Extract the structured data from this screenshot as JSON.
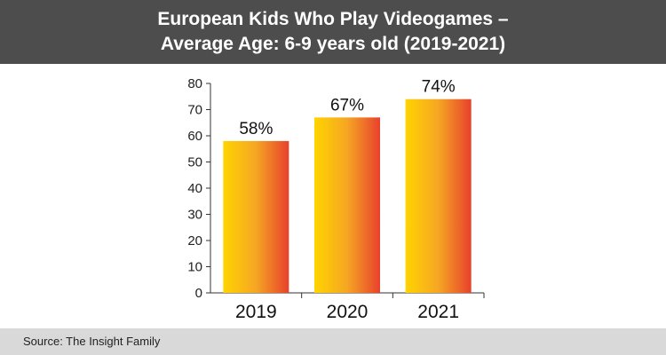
{
  "header": {
    "title_line1": "European Kids Who Play Videogames –",
    "title_line2": "Average Age: 6-9 years old (2019-2021)"
  },
  "footer": {
    "source": "Source: The Insight Family"
  },
  "colors": {
    "header_bg": "#4d4d4d",
    "footer_bg": "#d9d9d9",
    "bar_gradient_start": "#ffd400",
    "bar_gradient_mid": "#f5a623",
    "bar_gradient_end": "#e8412c"
  },
  "chart_data": {
    "type": "bar",
    "title": "European Kids Who Play Videogames – Average Age: 6-9 years old (2019-2021)",
    "categories": [
      "2019",
      "2020",
      "2021"
    ],
    "values": [
      58,
      67,
      74
    ],
    "value_labels": [
      "58%",
      "67%",
      "74%"
    ],
    "ylim": [
      0,
      80
    ],
    "yticks": [
      0,
      10,
      20,
      30,
      40,
      50,
      60,
      70,
      80
    ],
    "xlabel": "",
    "ylabel": "",
    "grid": false,
    "legend": "none"
  }
}
